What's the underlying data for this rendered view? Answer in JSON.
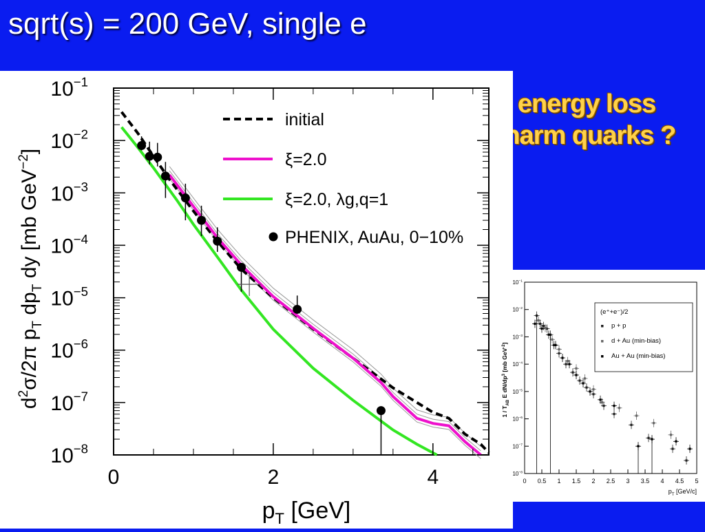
{
  "slide": {
    "title": "sqrt(s) = 200 GeV, single e",
    "callout_line1": "no energy loss",
    "callout_line2": "of charm quarks ?",
    "background_color": "#0a1cf0",
    "callout_color": "#ffd24a"
  },
  "chart_data": [
    {
      "type": "line",
      "yscale": "log",
      "xlim": [
        0,
        4.7
      ],
      "ylim": [
        1e-08,
        0.1
      ],
      "xticks": [
        "0",
        "2",
        "4"
      ],
      "yticks": [
        "10^-1",
        "10^-2",
        "10^-3",
        "10^-4",
        "10^-5",
        "10^-6",
        "10^-7",
        "10^-8"
      ],
      "xlabel": "p_T [GeV]",
      "ylabel": "d^2σ/2π p_T dp_T dy [mb GeV^-2]",
      "legend_position": "top-right",
      "series": [
        {
          "name": "initial",
          "style": "dashed",
          "color": "#000000",
          "points": [
            [
              0.1,
              0.035
            ],
            [
              0.3,
              0.014
            ],
            [
              0.5,
              0.005
            ],
            [
              0.7,
              0.0018
            ],
            [
              1.0,
              0.00045
            ],
            [
              1.3,
              0.00012
            ],
            [
              1.6,
              3.5e-05
            ],
            [
              2.0,
              1e-05
            ],
            [
              2.5,
              2.5e-06
            ],
            [
              3.0,
              7e-07
            ],
            [
              3.5,
              1.9e-07
            ],
            [
              4.0,
              6.5e-08
            ],
            [
              4.2,
              5e-08
            ],
            [
              4.4,
              2.5e-08
            ],
            [
              4.6,
              1.6e-08
            ],
            [
              4.7,
              1.1e-08
            ]
          ]
        },
        {
          "name": "ξ=2.0",
          "style": "solid",
          "color": "#ee11cc",
          "points": [
            [
              0.7,
              0.0022
            ],
            [
              1.0,
              0.00055
            ],
            [
              1.3,
              0.00014
            ],
            [
              1.6,
              4.2e-05
            ],
            [
              2.0,
              1.05e-05
            ],
            [
              2.5,
              2.6e-06
            ],
            [
              3.0,
              7e-07
            ],
            [
              3.35,
              2.4e-07
            ],
            [
              3.5,
              1.3e-07
            ],
            [
              3.8,
              5e-08
            ],
            [
              4.0,
              4e-08
            ],
            [
              4.2,
              3.6e-08
            ],
            [
              4.4,
              1.8e-08
            ],
            [
              4.6,
              1e-08
            ]
          ]
        },
        {
          "name": "ξ=2.0, λg,q=1",
          "style": "solid",
          "color": "#33e622",
          "points": [
            [
              0.1,
              0.018
            ],
            [
              0.3,
              0.0075
            ],
            [
              0.5,
              0.003
            ],
            [
              0.8,
              0.0007
            ],
            [
              1.0,
              0.00025
            ],
            [
              1.3,
              6e-05
            ],
            [
              1.6,
              1.4e-05
            ],
            [
              2.0,
              2.5e-06
            ],
            [
              2.5,
              4.5e-07
            ],
            [
              3.0,
              1.1e-07
            ],
            [
              3.5,
              3e-08
            ],
            [
              3.8,
              1.6e-08
            ],
            [
              4.05,
              1e-08
            ]
          ]
        },
        {
          "name": "PHENIX, AuAu, 0−10%",
          "style": "markers",
          "color": "#000000",
          "points": [
            [
              0.35,
              0.008,
              0.0015,
              0.004
            ],
            [
              0.45,
              0.005,
              0.0015,
              0.0045
            ],
            [
              0.55,
              0.0048,
              0.0016,
              0.0042
            ],
            [
              0.65,
              0.0021,
              0.0013,
              0.0018
            ],
            [
              0.9,
              0.0008,
              0.0005,
              0.0007
            ],
            [
              1.1,
              0.0003,
              0.00015,
              0.00027
            ],
            [
              1.3,
              0.00012,
              4.5e-05,
              0.0001
            ],
            [
              1.6,
              3.8e-05,
              2.5e-05,
              0
            ],
            [
              2.3,
              6e-06,
              1e-06,
              5e-06
            ],
            [
              3.35,
              7e-08,
              7e-07,
              9.9e-09
            ]
          ]
        }
      ],
      "extra_marker": [
        1.7,
        1.8e-05
      ]
    },
    {
      "type": "scatter",
      "yscale": "log",
      "xlim": [
        0,
        5
      ],
      "ylim": [
        1e-08,
        0.1
      ],
      "xticks": [
        "0",
        "0.5",
        "1",
        "1.5",
        "2",
        "2.5",
        "3",
        "3.5",
        "4",
        "4.5",
        "5"
      ],
      "yticks": [
        "10^-1",
        "10^-2",
        "10^-3",
        "10^-4",
        "10^-5",
        "10^-6",
        "10^-7",
        "10^-8"
      ],
      "xlabel": "p_T [GeV/c]",
      "ylabel": "1 / T_AB E dN/dp^3 [mb GeV^-2]",
      "legend_title": "(e⁺+e⁻)/2",
      "legend_position": "top-right",
      "series": [
        {
          "name": "p + p",
          "points": [
            [
              0.35,
              0.006
            ],
            [
              0.45,
              0.003
            ],
            [
              0.55,
              0.0025
            ],
            [
              0.65,
              0.002
            ],
            [
              0.75,
              0.0012
            ],
            [
              0.85,
              0.0005
            ],
            [
              1.0,
              0.00025
            ],
            [
              1.2,
              0.0001
            ],
            [
              1.4,
              5e-05
            ],
            [
              1.6,
              2.5e-05
            ],
            [
              1.8,
              1.4e-05
            ],
            [
              2.0,
              8e-06
            ],
            [
              2.3,
              3e-06
            ],
            [
              2.6,
              1.5e-06
            ],
            [
              3.1,
              6e-07
            ],
            [
              3.6,
              2e-07
            ],
            [
              4.3,
              8e-08
            ],
            [
              4.7,
              3e-08
            ]
          ]
        },
        {
          "name": "d + Au (min-bias)",
          "points": [
            [
              0.4,
              0.004
            ],
            [
              0.6,
              0.0021
            ],
            [
              0.8,
              0.0008
            ],
            [
              1.0,
              0.00035
            ],
            [
              1.25,
              0.00013
            ],
            [
              1.5,
              7e-05
            ],
            [
              1.75,
              3e-05
            ],
            [
              2.0,
              1.2e-05
            ],
            [
              2.25,
              4e-06
            ],
            [
              2.75,
              2.5e-06
            ],
            [
              3.25,
              1.3e-06
            ],
            [
              3.75,
              7e-07
            ],
            [
              4.25,
              2.6e-07
            ]
          ]
        },
        {
          "name": "Au + Au (min-bias)",
          "points": [
            [
              0.3,
              0.003
            ],
            [
              0.5,
              0.002
            ],
            [
              0.7,
              0.0012
            ],
            [
              0.9,
              0.0005
            ],
            [
              1.1,
              0.00017
            ],
            [
              1.3,
              0.0001
            ],
            [
              1.5,
              4e-05
            ],
            [
              1.7,
              2e-05
            ],
            [
              1.9,
              1e-05
            ],
            [
              2.2,
              5e-06
            ],
            [
              2.6,
              3e-06
            ],
            [
              3.3,
              1e-07
            ],
            [
              3.7,
              1.8e-07
            ],
            [
              4.4,
              1.5e-07
            ],
            [
              4.8,
              8e-08
            ]
          ]
        }
      ]
    }
  ]
}
